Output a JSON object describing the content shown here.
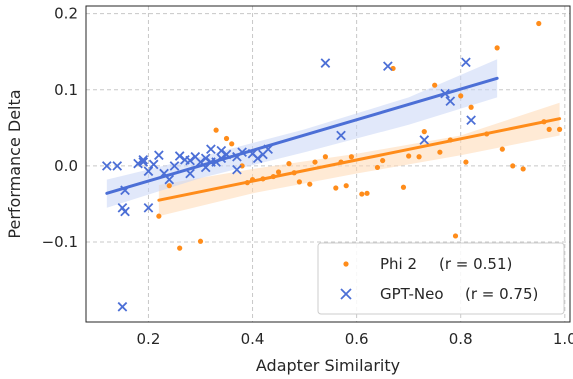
{
  "chart_data": {
    "type": "scatter",
    "xlabel": "Adapter Similarity",
    "ylabel": "Performance Delta",
    "xlim": [
      0.08,
      1.01
    ],
    "ylim": [
      -0.205,
      0.21
    ],
    "x_ticks": [
      0.2,
      0.4,
      0.6,
      0.8,
      1.0
    ],
    "x_tick_labels": [
      "0.2",
      "0.4",
      "0.6",
      "0.8",
      "1.0"
    ],
    "y_ticks": [
      -0.1,
      0.0,
      0.1,
      0.2
    ],
    "y_tick_labels": [
      "−0.1",
      "0.0",
      "0.1",
      "0.2"
    ],
    "grid": true,
    "legend_position": "bottom-right",
    "series": [
      {
        "name": "Phi 2",
        "r_label": "(r = 0.51)",
        "marker": "dot",
        "color": "#ff8c1a",
        "band_color": "#ffd9b3",
        "fit": {
          "x": [
            0.22,
            0.99
          ],
          "y": [
            -0.045,
            0.062
          ]
        },
        "band": {
          "x": [
            0.22,
            0.4,
            0.6,
            0.8,
            0.99
          ],
          "upper": [
            -0.025,
            -0.004,
            0.016,
            0.04,
            0.083
          ],
          "lower": [
            -0.066,
            -0.036,
            -0.01,
            0.014,
            0.04
          ]
        },
        "points": [
          [
            0.22,
            -0.066
          ],
          [
            0.24,
            -0.026
          ],
          [
            0.26,
            -0.108
          ],
          [
            0.3,
            -0.099
          ],
          [
            0.33,
            0.047
          ],
          [
            0.35,
            0.036
          ],
          [
            0.36,
            0.029
          ],
          [
            0.38,
            0.0
          ],
          [
            0.39,
            -0.022
          ],
          [
            0.4,
            -0.018
          ],
          [
            0.42,
            -0.017
          ],
          [
            0.44,
            -0.014
          ],
          [
            0.45,
            -0.008
          ],
          [
            0.47,
            0.003
          ],
          [
            0.48,
            -0.009
          ],
          [
            0.49,
            -0.021
          ],
          [
            0.51,
            -0.024
          ],
          [
            0.52,
            0.005
          ],
          [
            0.54,
            0.012
          ],
          [
            0.56,
            -0.029
          ],
          [
            0.57,
            0.005
          ],
          [
            0.58,
            -0.026
          ],
          [
            0.59,
            0.012
          ],
          [
            0.61,
            -0.037
          ],
          [
            0.62,
            -0.036
          ],
          [
            0.64,
            -0.002
          ],
          [
            0.65,
            0.007
          ],
          [
            0.67,
            0.128
          ],
          [
            0.69,
            -0.028
          ],
          [
            0.7,
            0.013
          ],
          [
            0.72,
            0.012
          ],
          [
            0.73,
            0.045
          ],
          [
            0.75,
            0.106
          ],
          [
            0.76,
            0.018
          ],
          [
            0.78,
            0.034
          ],
          [
            0.79,
            -0.092
          ],
          [
            0.8,
            0.092
          ],
          [
            0.81,
            0.005
          ],
          [
            0.82,
            0.077
          ],
          [
            0.85,
            0.042
          ],
          [
            0.87,
            0.155
          ],
          [
            0.88,
            0.022
          ],
          [
            0.9,
            0.0
          ],
          [
            0.92,
            -0.004
          ],
          [
            0.95,
            0.187
          ],
          [
            0.96,
            0.058
          ],
          [
            0.97,
            0.048
          ],
          [
            0.99,
            0.048
          ]
        ]
      },
      {
        "name": "GPT-Neo",
        "r_label": "(r = 0.75)",
        "marker": "x",
        "color": "#4c6fd6",
        "band_color": "#c9d5f5",
        "fit": {
          "x": [
            0.12,
            0.87
          ],
          "y": [
            -0.036,
            0.115
          ]
        },
        "band": {
          "x": [
            0.12,
            0.3,
            0.5,
            0.7,
            0.87
          ],
          "upper": [
            -0.018,
            0.012,
            0.048,
            0.09,
            0.14
          ],
          "lower": [
            -0.055,
            -0.016,
            0.018,
            0.054,
            0.09
          ]
        },
        "points": [
          [
            0.12,
            0.0
          ],
          [
            0.14,
            0.0
          ],
          [
            0.15,
            -0.055
          ],
          [
            0.155,
            -0.032
          ],
          [
            0.155,
            -0.06
          ],
          [
            0.15,
            -0.185
          ],
          [
            0.18,
            0.003
          ],
          [
            0.19,
            0.008
          ],
          [
            0.19,
            0.005
          ],
          [
            0.2,
            -0.007
          ],
          [
            0.2,
            -0.055
          ],
          [
            0.21,
            0.002
          ],
          [
            0.22,
            0.014
          ],
          [
            0.23,
            -0.01
          ],
          [
            0.24,
            -0.018
          ],
          [
            0.25,
            0.0
          ],
          [
            0.26,
            0.013
          ],
          [
            0.27,
            0.008
          ],
          [
            0.28,
            0.007
          ],
          [
            0.28,
            -0.01
          ],
          [
            0.29,
            0.012
          ],
          [
            0.3,
            0.005
          ],
          [
            0.31,
            -0.002
          ],
          [
            0.31,
            0.01
          ],
          [
            0.32,
            0.022
          ],
          [
            0.32,
            0.005
          ],
          [
            0.33,
            0.005
          ],
          [
            0.34,
            0.01
          ],
          [
            0.34,
            0.02
          ],
          [
            0.35,
            0.015
          ],
          [
            0.37,
            0.012
          ],
          [
            0.37,
            -0.005
          ],
          [
            0.38,
            0.018
          ],
          [
            0.4,
            0.016
          ],
          [
            0.41,
            0.01
          ],
          [
            0.42,
            0.015
          ],
          [
            0.43,
            0.022
          ],
          [
            0.54,
            0.135
          ],
          [
            0.57,
            0.04
          ],
          [
            0.66,
            0.131
          ],
          [
            0.73,
            0.034
          ],
          [
            0.77,
            0.095
          ],
          [
            0.78,
            0.085
          ],
          [
            0.81,
            0.136
          ],
          [
            0.82,
            0.06
          ]
        ]
      }
    ]
  }
}
